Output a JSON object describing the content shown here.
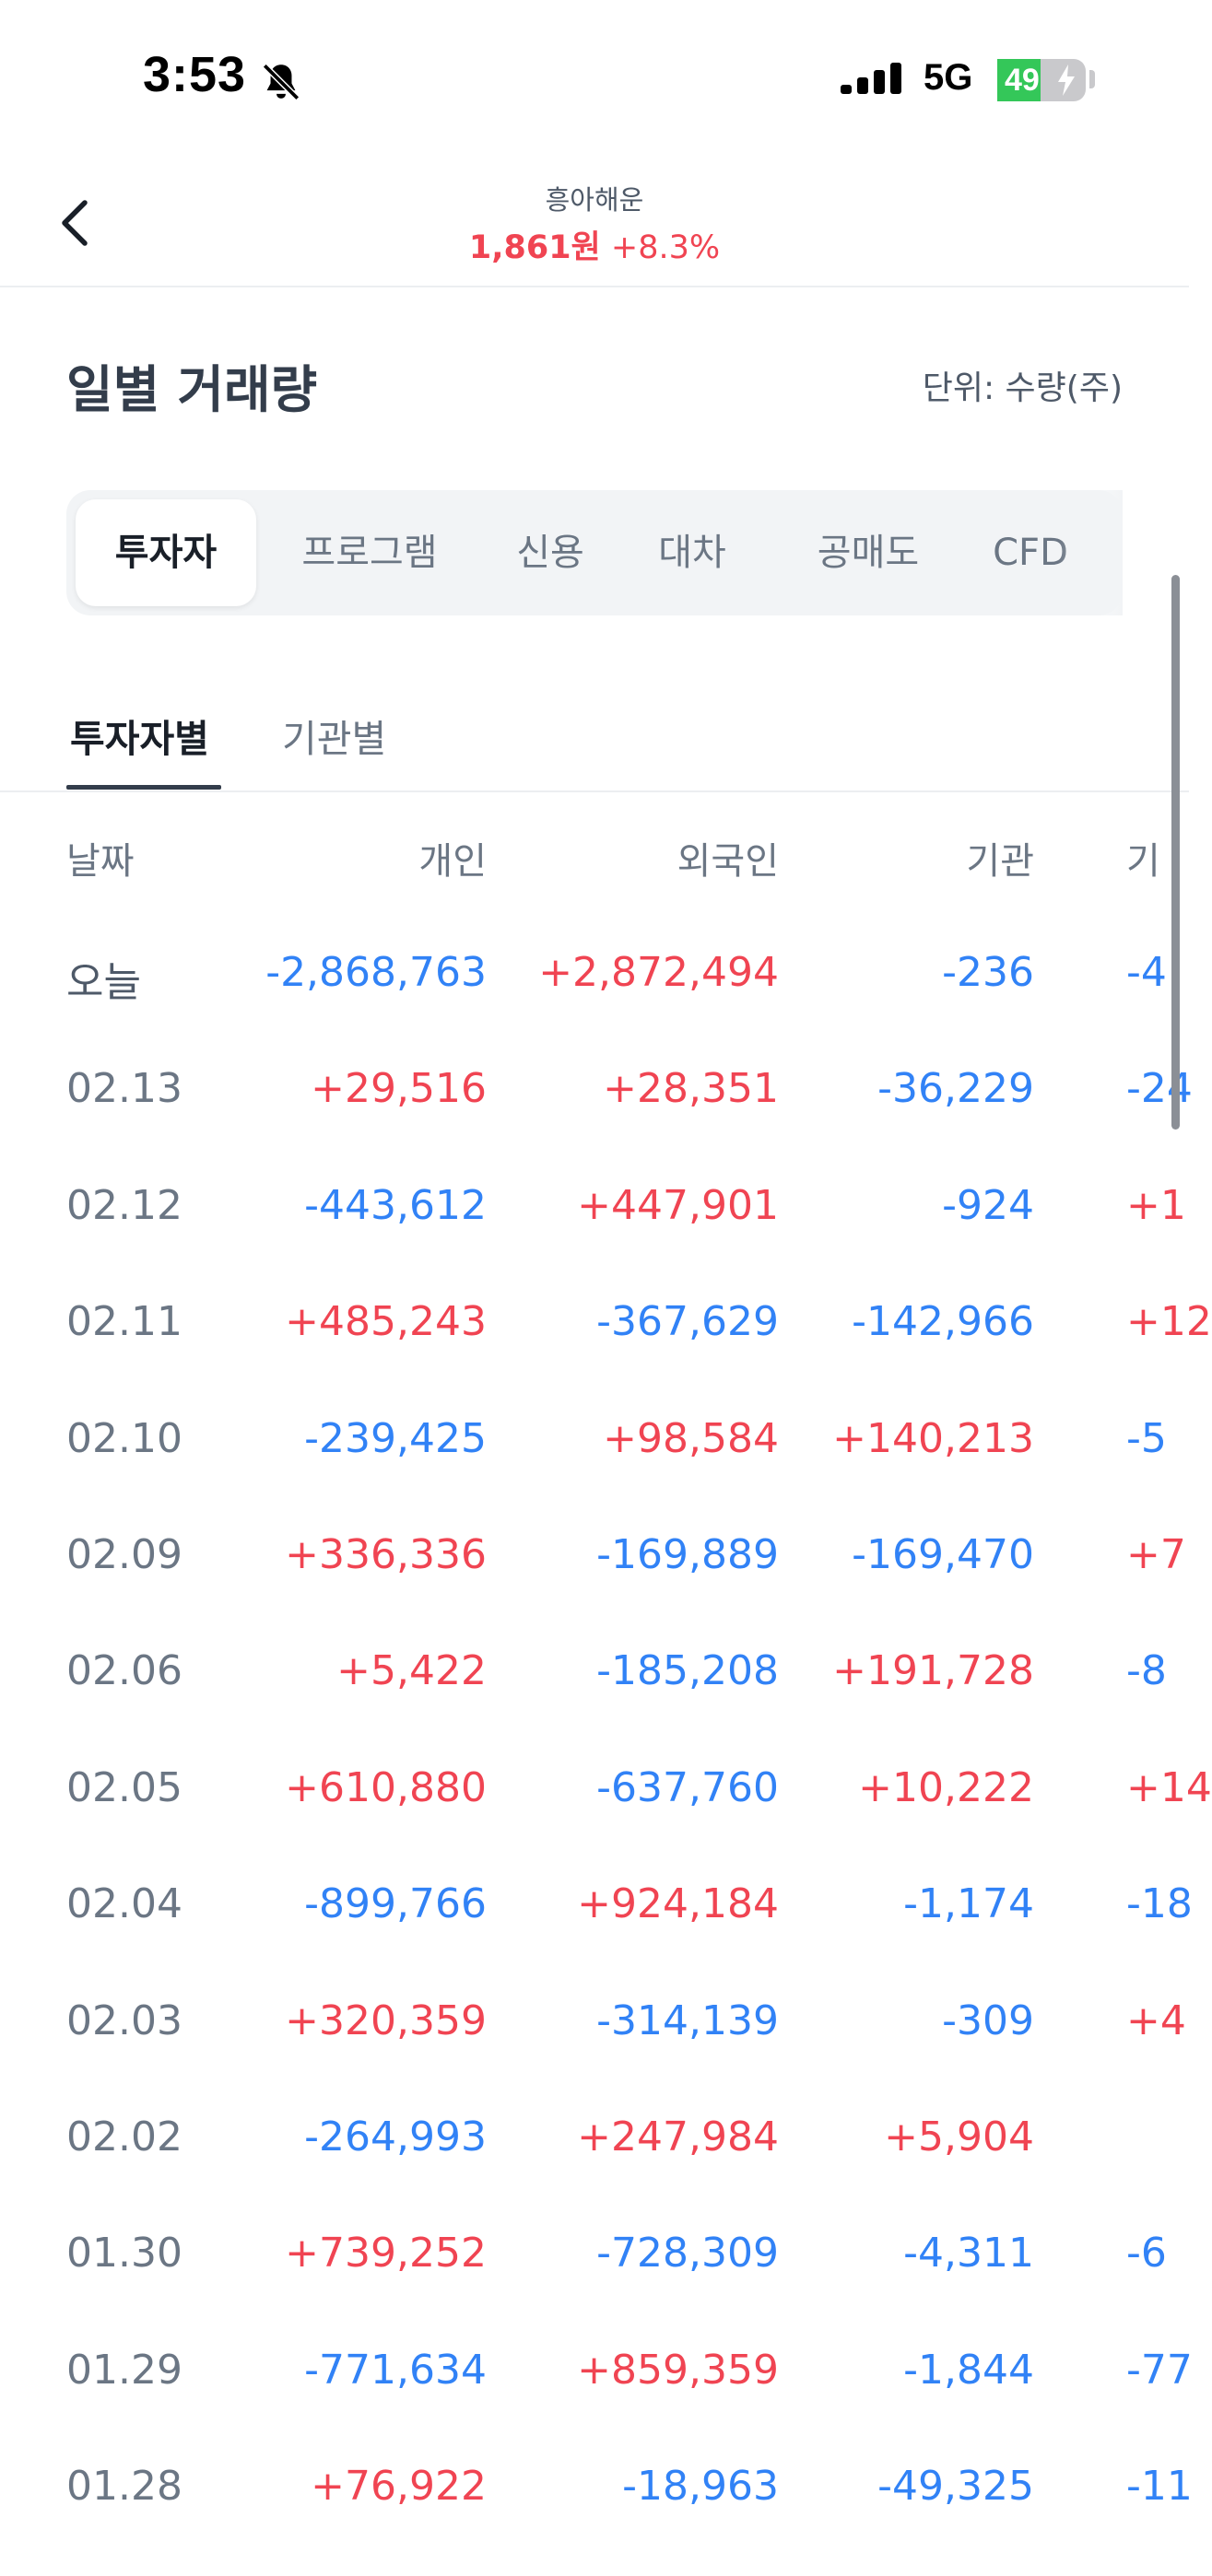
{
  "status_bar": {
    "time": "3:53",
    "network": "5G",
    "battery_level": "49",
    "battery_fraction": 0.49,
    "icons": [
      "bell-slash-icon",
      "signal-icon",
      "battery-icon",
      "bolt-icon"
    ]
  },
  "header": {
    "stock_name": "흥아해운",
    "price": "1,861원",
    "change": "+8.3%",
    "back_icon": "chevron-left-icon"
  },
  "section": {
    "title": "일별 거래량",
    "unit": "단위: 수량(주)"
  },
  "segment_tabs": [
    "투자자",
    "프로그램",
    "신용",
    "대차",
    "공매도",
    "CFD"
  ],
  "sub_tabs": [
    "투자자별",
    "기관별"
  ],
  "table": {
    "columns": [
      "날짜",
      "개인",
      "외국인",
      "기관",
      "기"
    ],
    "rows": [
      {
        "date": "오늘",
        "individual": "-2,868,763",
        "foreign": "+2,872,494",
        "institution": "-236",
        "other": "-4"
      },
      {
        "date": "02.13",
        "individual": "+29,516",
        "foreign": "+28,351",
        "institution": "-36,229",
        "other": "-24"
      },
      {
        "date": "02.12",
        "individual": "-443,612",
        "foreign": "+447,901",
        "institution": "-924",
        "other": "+1"
      },
      {
        "date": "02.11",
        "individual": "+485,243",
        "foreign": "-367,629",
        "institution": "-142,966",
        "other": "+12"
      },
      {
        "date": "02.10",
        "individual": "-239,425",
        "foreign": "+98,584",
        "institution": "+140,213",
        "other": "-5"
      },
      {
        "date": "02.09",
        "individual": "+336,336",
        "foreign": "-169,889",
        "institution": "-169,470",
        "other": "+7"
      },
      {
        "date": "02.06",
        "individual": "+5,422",
        "foreign": "-185,208",
        "institution": "+191,728",
        "other": "-8"
      },
      {
        "date": "02.05",
        "individual": "+610,880",
        "foreign": "-637,760",
        "institution": "+10,222",
        "other": "+14"
      },
      {
        "date": "02.04",
        "individual": "-899,766",
        "foreign": "+924,184",
        "institution": "-1,174",
        "other": "-18"
      },
      {
        "date": "02.03",
        "individual": "+320,359",
        "foreign": "-314,139",
        "institution": "-309",
        "other": "+4"
      },
      {
        "date": "02.02",
        "individual": "-264,993",
        "foreign": "+247,984",
        "institution": "+5,904",
        "other": ""
      },
      {
        "date": "01.30",
        "individual": "+739,252",
        "foreign": "-728,309",
        "institution": "-4,311",
        "other": "-6"
      },
      {
        "date": "01.29",
        "individual": "-771,634",
        "foreign": "+859,359",
        "institution": "-1,844",
        "other": "-77"
      },
      {
        "date": "01.28",
        "individual": "+76,922",
        "foreign": "-18,963",
        "institution": "-49,325",
        "other": "-11"
      }
    ]
  },
  "colors": {
    "positive": "#f04452",
    "negative": "#3182f6",
    "text_secondary": "#6b7684",
    "title": "#333d4b"
  }
}
